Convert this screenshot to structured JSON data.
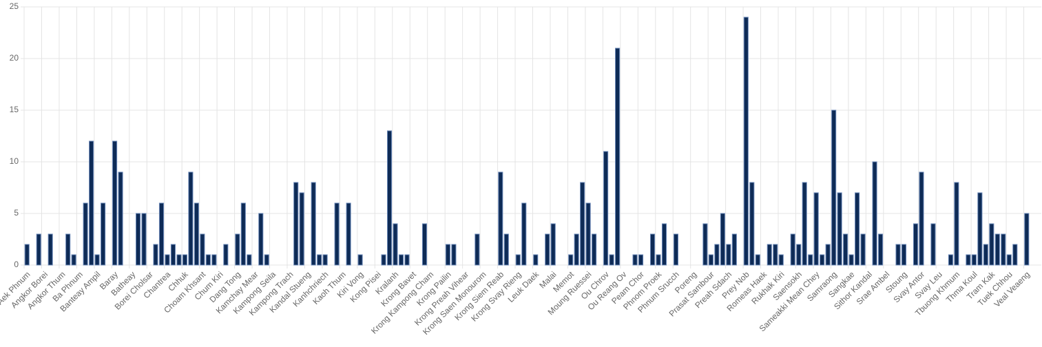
{
  "chart_data": {
    "type": "bar",
    "categories": [
      "Aek Phnum",
      null,
      null,
      "Angkor Borei",
      null,
      null,
      "Angkor Thum",
      null,
      null,
      "Ba Phnum",
      null,
      null,
      "Banteay Ampil",
      null,
      null,
      "Baray",
      null,
      null,
      "Batheay",
      null,
      null,
      "Borei Cholsar",
      null,
      null,
      "Chantrea",
      null,
      null,
      "Chhuk",
      null,
      null,
      "Choam Khsant",
      null,
      null,
      "Chum Kiri",
      null,
      null,
      "Dang Tong",
      null,
      null,
      "Kamchay Mear",
      null,
      null,
      "Kampong Seila",
      null,
      null,
      "Kampong Trach",
      null,
      null,
      "Kandal Stueng",
      null,
      null,
      "Kanhchriech",
      null,
      null,
      "Kaoh Thum",
      null,
      null,
      "Kiri Vong",
      null,
      null,
      "Kong Pisei",
      null,
      null,
      "Kralanh",
      null,
      null,
      "Krong Bavet",
      null,
      null,
      "Krong Kampong Cham",
      null,
      null,
      "Krong Pailin",
      null,
      null,
      "Krong Preah Vihear",
      null,
      null,
      "Krong Saen Monourom",
      null,
      null,
      "Krong Siem Reab",
      null,
      null,
      "Krong Svay Rieng",
      null,
      null,
      "Leuk Daek",
      null,
      null,
      "Malai",
      null,
      null,
      "Memot",
      null,
      null,
      "Moung Ruessei",
      null,
      null,
      "Ou Chrov",
      null,
      null,
      "Ou Reang Ov",
      null,
      null,
      "Peam Chor",
      null,
      null,
      "Phnom Proek",
      null,
      null,
      "Phnum Srucch",
      null,
      null,
      "Poreng",
      null,
      null,
      "Prasat Sambour",
      null,
      null,
      "Preah Sdach",
      null,
      null,
      "Prey Nob",
      null,
      null,
      "Romeas Haek",
      null,
      null,
      "Rukhak Kiri",
      null,
      null,
      "Saensokh",
      null,
      null,
      "Sameakki Mean Chey",
      null,
      null,
      "Samraong",
      null,
      null,
      "Sangkae",
      null,
      null,
      "Sithor Kandal",
      null,
      null,
      "Srae Ambel",
      null,
      null,
      "Stoung",
      null,
      null,
      "Svay Antor",
      null,
      null,
      "Svay Leu",
      null,
      null,
      "Tbuong Khmum",
      null,
      null,
      "Thma Koul",
      null,
      null,
      "Tram Kak",
      null,
      null,
      "Tuek Chhou",
      null,
      null,
      "Veal Veaeng",
      null,
      null
    ],
    "values": [
      2,
      0,
      3,
      0,
      3,
      0,
      0,
      3,
      1,
      0,
      6,
      12,
      1,
      6,
      0,
      12,
      9,
      0,
      0,
      5,
      5,
      0,
      2,
      6,
      1,
      2,
      1,
      1,
      9,
      6,
      3,
      1,
      1,
      0,
      2,
      0,
      3,
      6,
      1,
      0,
      5,
      1,
      0,
      0,
      0,
      0,
      8,
      7,
      0,
      8,
      1,
      1,
      0,
      6,
      0,
      6,
      0,
      1,
      0,
      0,
      0,
      1,
      13,
      4,
      1,
      1,
      0,
      0,
      4,
      0,
      0,
      0,
      2,
      2,
      0,
      0,
      0,
      3,
      0,
      0,
      0,
      9,
      3,
      0,
      1,
      6,
      0,
      1,
      0,
      3,
      4,
      0,
      0,
      1,
      3,
      8,
      6,
      3,
      0,
      11,
      1,
      21,
      0,
      0,
      1,
      1,
      0,
      3,
      1,
      4,
      0,
      3,
      0,
      0,
      0,
      0,
      4,
      1,
      2,
      5,
      2,
      3,
      0,
      24,
      8,
      1,
      0,
      2,
      2,
      1,
      0,
      3,
      2,
      8,
      1,
      7,
      1,
      2,
      15,
      7,
      3,
      1,
      7,
      3,
      0,
      10,
      3,
      0,
      0,
      2,
      2,
      0,
      4,
      9,
      0,
      4,
      0,
      0,
      1,
      8,
      0,
      1,
      1,
      7,
      2,
      4,
      3,
      3,
      1,
      2,
      0,
      5,
      0,
      0
    ],
    "color": "#0e2b56",
    "ylim": [
      0,
      25
    ],
    "yticks": [
      0,
      5,
      10,
      15,
      20,
      25
    ],
    "grid": true
  }
}
